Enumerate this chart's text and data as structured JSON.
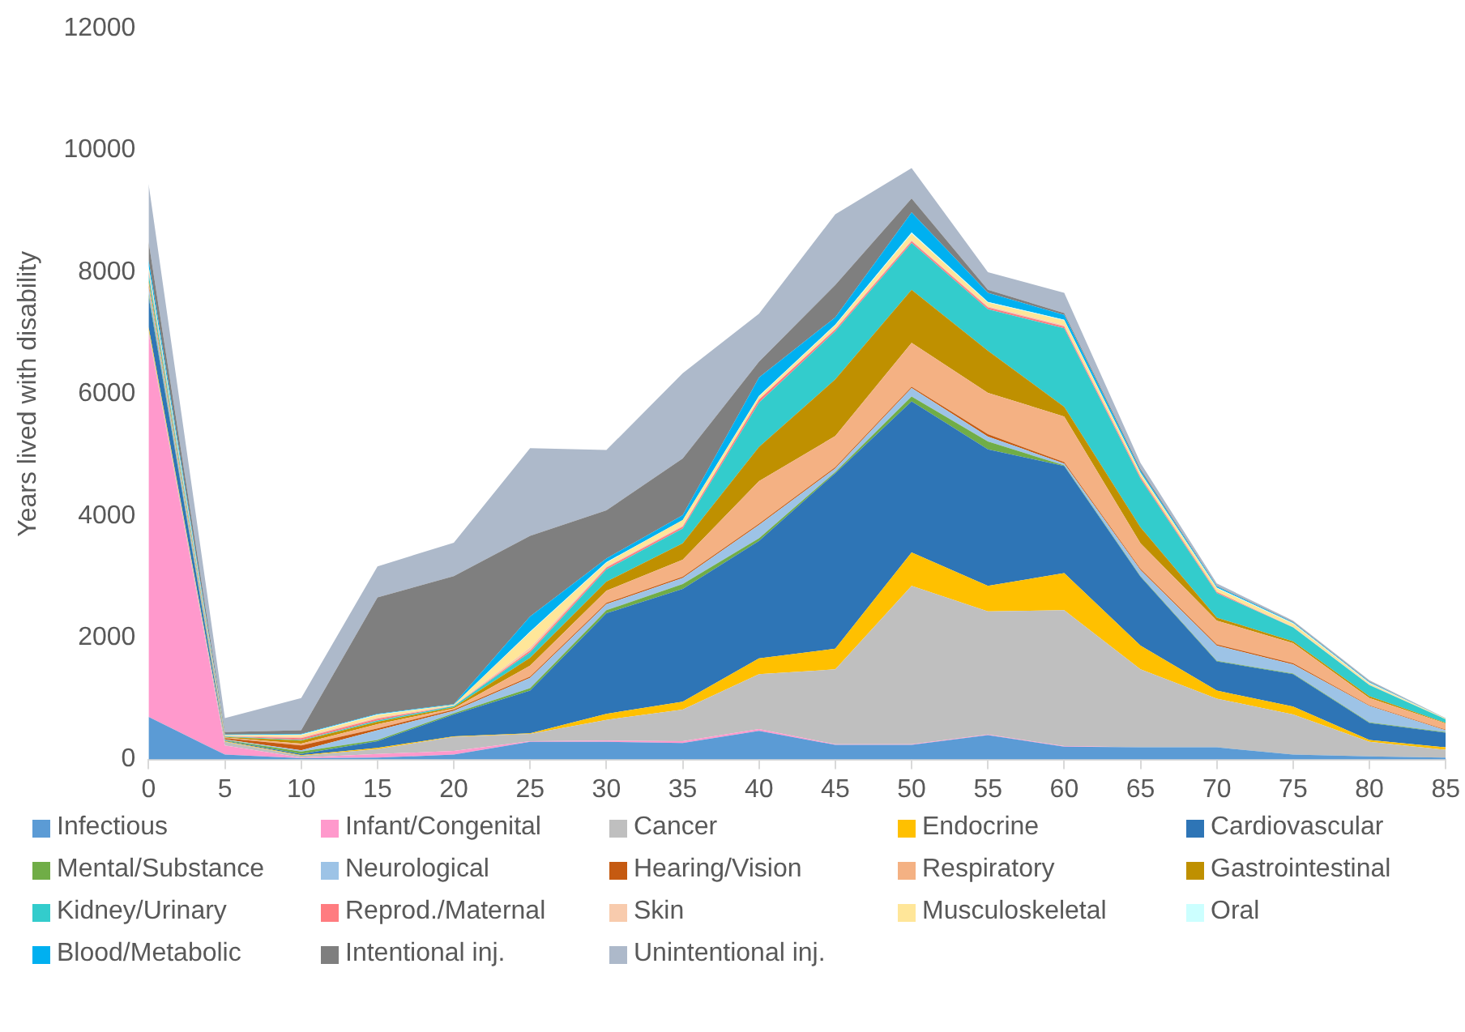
{
  "chart_data": {
    "type": "area",
    "stacked": true,
    "ylabel": "Years lived with disability",
    "x": [
      0,
      5,
      10,
      15,
      20,
      25,
      30,
      35,
      40,
      45,
      50,
      55,
      60,
      65,
      70,
      75,
      80,
      85
    ],
    "xlim": [
      0,
      85
    ],
    "xticks": [
      0,
      5,
      10,
      15,
      20,
      25,
      30,
      35,
      40,
      45,
      50,
      55,
      60,
      65,
      70,
      75,
      80,
      85
    ],
    "ylim": [
      0,
      12000
    ],
    "yticks": [
      0,
      2000,
      4000,
      6000,
      8000,
      10000,
      12000
    ],
    "grid": false,
    "legend": "bottom",
    "series": [
      {
        "name": "Infectious",
        "color": "#5b9bd5",
        "values": [
          700,
          80,
          20,
          30,
          80,
          290,
          290,
          270,
          470,
          240,
          240,
          400,
          210,
          200,
          200,
          80,
          50,
          30
        ]
      },
      {
        "name": "Infant/Congenital",
        "color": "#ff99cc",
        "values": [
          6300,
          150,
          10,
          60,
          60,
          10,
          20,
          30,
          30,
          10,
          10,
          10,
          10,
          0,
          0,
          0,
          0,
          0
        ]
      },
      {
        "name": "Cancer",
        "color": "#bfbfbf",
        "values": [
          50,
          60,
          30,
          80,
          230,
          120,
          340,
          520,
          900,
          1230,
          2600,
          2020,
          2230,
          1280,
          800,
          660,
          240,
          130
        ]
      },
      {
        "name": "Endocrine",
        "color": "#ffc000",
        "values": [
          50,
          10,
          10,
          20,
          10,
          10,
          100,
          130,
          260,
          340,
          550,
          420,
          610,
          390,
          130,
          130,
          30,
          40
        ]
      },
      {
        "name": "Cardiovascular",
        "color": "#2e75b6",
        "values": [
          500,
          10,
          20,
          110,
          360,
          700,
          1650,
          1850,
          1930,
          2880,
          2480,
          2240,
          1760,
          1130,
          480,
          530,
          280,
          240
        ]
      },
      {
        "name": "Mental/Substance",
        "color": "#70ad47",
        "values": [
          50,
          10,
          40,
          20,
          20,
          40,
          50,
          80,
          40,
          20,
          80,
          130,
          10,
          10,
          10,
          10,
          10,
          10
        ]
      },
      {
        "name": "Neurological",
        "color": "#9dc3e6",
        "values": [
          100,
          10,
          20,
          160,
          40,
          170,
          100,
          100,
          220,
          60,
          140,
          80,
          30,
          100,
          250,
          150,
          270,
          30
        ]
      },
      {
        "name": "Hearing/Vision",
        "color": "#c55a11",
        "values": [
          30,
          20,
          80,
          30,
          20,
          20,
          20,
          20,
          20,
          20,
          20,
          40,
          20,
          20,
          20,
          20,
          10,
          10
        ]
      },
      {
        "name": "Respiratory",
        "color": "#f4b183",
        "values": [
          50,
          10,
          30,
          70,
          20,
          180,
          200,
          280,
          700,
          510,
          720,
          680,
          750,
          420,
          390,
          330,
          120,
          100
        ]
      },
      {
        "name": "Gastrointestinal",
        "color": "#bf9000",
        "values": [
          50,
          10,
          50,
          40,
          20,
          130,
          150,
          270,
          560,
          930,
          870,
          690,
          160,
          260,
          50,
          30,
          30,
          10
        ]
      },
      {
        "name": "Kidney/Urinary",
        "color": "#33cccc",
        "values": [
          100,
          10,
          10,
          20,
          20,
          90,
          200,
          240,
          730,
          790,
          770,
          680,
          1290,
          800,
          400,
          230,
          180,
          60
        ]
      },
      {
        "name": "Reprod./Maternal",
        "color": "#ff7c80",
        "values": [
          30,
          0,
          30,
          30,
          0,
          30,
          30,
          30,
          50,
          30,
          30,
          30,
          30,
          30,
          20,
          0,
          0,
          0
        ]
      },
      {
        "name": "Skin",
        "color": "#f8cbad",
        "values": [
          20,
          10,
          20,
          20,
          10,
          50,
          20,
          20,
          0,
          20,
          20,
          20,
          20,
          0,
          0,
          10,
          10,
          0
        ]
      },
      {
        "name": "Musculoskeletal",
        "color": "#ffe699",
        "values": [
          50,
          10,
          30,
          40,
          10,
          250,
          60,
          90,
          50,
          50,
          100,
          60,
          80,
          60,
          60,
          50,
          20,
          10
        ]
      },
      {
        "name": "Oral",
        "color": "#ccffff",
        "values": [
          20,
          0,
          10,
          10,
          0,
          10,
          10,
          0,
          10,
          10,
          20,
          10,
          10,
          10,
          10,
          10,
          10,
          0
        ]
      },
      {
        "name": "Blood/Metabolic",
        "color": "#00b0f0",
        "values": [
          100,
          10,
          10,
          10,
          10,
          250,
          60,
          80,
          300,
          120,
          330,
          150,
          80,
          30,
          20,
          10,
          10,
          0
        ]
      },
      {
        "name": "Intentional inj.",
        "color": "#7f7f7f",
        "values": [
          300,
          40,
          60,
          1910,
          2100,
          1320,
          790,
          930,
          260,
          530,
          230,
          50,
          30,
          30,
          10,
          10,
          10,
          0
        ]
      },
      {
        "name": "Unintentional inj.",
        "color": "#adb9ca",
        "values": [
          950,
          230,
          530,
          510,
          550,
          1440,
          990,
          1400,
          790,
          1160,
          500,
          290,
          330,
          100,
          40,
          20,
          20,
          10
        ]
      }
    ]
  }
}
